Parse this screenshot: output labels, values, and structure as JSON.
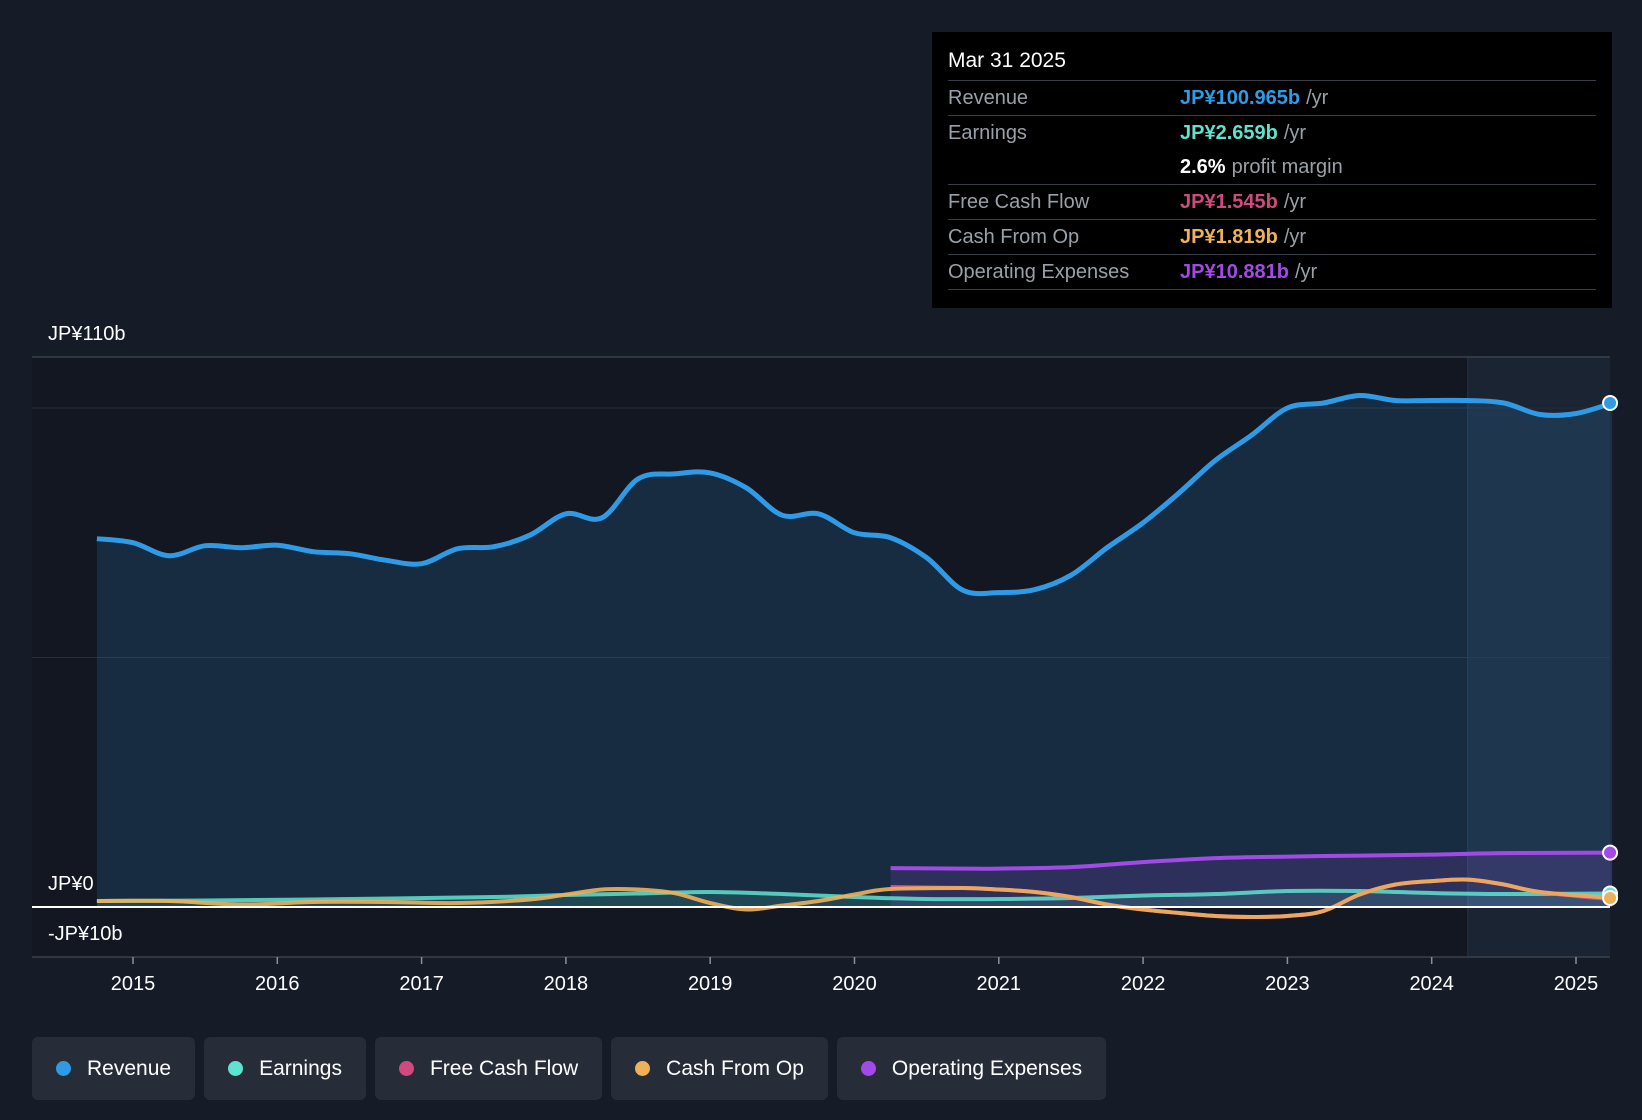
{
  "colors": {
    "revenue": "#2f9be6",
    "earnings": "#5fe3d0",
    "fcf": "#d04a80",
    "cfo": "#efb05a",
    "opex": "#a24ae8",
    "background": "#151c27",
    "plot_background": "#121721"
  },
  "tooltip": {
    "date": "Mar 31 2025",
    "rows": [
      {
        "label": "Revenue",
        "value": "JP¥100.965b",
        "unit": "/yr"
      },
      {
        "label": "Earnings",
        "value": "JP¥2.659b",
        "unit": "/yr"
      },
      {
        "label": "",
        "value": "2.6%",
        "unit": "profit margin"
      },
      {
        "label": "Free Cash Flow",
        "value": "JP¥1.545b",
        "unit": "/yr"
      },
      {
        "label": "Cash From Op",
        "value": "JP¥1.819b",
        "unit": "/yr"
      },
      {
        "label": "Operating Expenses",
        "value": "JP¥10.881b",
        "unit": "/yr"
      }
    ]
  },
  "legend": [
    {
      "label": "Revenue",
      "color": "#2f9be6"
    },
    {
      "label": "Earnings",
      "color": "#5fe3d0"
    },
    {
      "label": "Free Cash Flow",
      "color": "#d04a80"
    },
    {
      "label": "Cash From Op",
      "color": "#efb05a"
    },
    {
      "label": "Operating Expenses",
      "color": "#a24ae8"
    }
  ],
  "chart_data": {
    "type": "area",
    "title": "",
    "xlabel": "",
    "ylabel": "",
    "y_axis_labels": [
      "JP¥110b",
      "JP¥0",
      "-JP¥10b"
    ],
    "ylim": [
      -10,
      110
    ],
    "xlim": [
      2014.75,
      2025.25
    ],
    "x_ticks": [
      "2015",
      "2016",
      "2017",
      "2018",
      "2019",
      "2020",
      "2021",
      "2022",
      "2023",
      "2024",
      "2025"
    ],
    "series": [
      {
        "name": "Revenue",
        "x": [
          2014.75,
          2015.0,
          2015.25,
          2015.5,
          2015.75,
          2016.0,
          2016.25,
          2016.5,
          2016.75,
          2017.0,
          2017.25,
          2017.5,
          2017.75,
          2018.0,
          2018.25,
          2018.5,
          2018.75,
          2019.0,
          2019.25,
          2019.5,
          2019.75,
          2020.0,
          2020.25,
          2020.5,
          2020.75,
          2021.0,
          2021.25,
          2021.5,
          2021.75,
          2022.0,
          2022.25,
          2022.5,
          2022.75,
          2023.0,
          2023.25,
          2023.5,
          2023.75,
          2024.0,
          2024.25,
          2024.5,
          2024.75,
          2025.0,
          2025.25
        ],
        "values": [
          73.8,
          73.0,
          70.4,
          72.4,
          72.0,
          72.5,
          71.2,
          70.8,
          69.5,
          68.8,
          71.8,
          72.2,
          74.5,
          78.8,
          78.0,
          85.8,
          86.8,
          87.0,
          84.0,
          78.5,
          78.8,
          75.0,
          74.0,
          70.0,
          63.5,
          63.0,
          63.6,
          66.5,
          72.0,
          77.0,
          83.0,
          89.5,
          94.5,
          100.0,
          101.0,
          102.5,
          101.5,
          101.5,
          101.5,
          101.0,
          98.7,
          98.9,
          101.0
        ]
      },
      {
        "name": "Earnings",
        "x": [
          2014.75,
          2015.5,
          2016.5,
          2017.5,
          2018.0,
          2018.5,
          2019.0,
          2019.5,
          2020.0,
          2020.5,
          2021.0,
          2021.5,
          2022.0,
          2022.5,
          2023.0,
          2023.5,
          2024.0,
          2024.5,
          2025.25
        ],
        "values": [
          1.2,
          1.3,
          1.6,
          2.0,
          2.4,
          2.7,
          3.0,
          2.6,
          2.0,
          1.6,
          1.6,
          1.8,
          2.3,
          2.6,
          3.2,
          3.2,
          2.8,
          2.6,
          2.7
        ]
      },
      {
        "name": "Free Cash Flow",
        "x": [
          2020.25,
          2020.75,
          2021.0,
          2021.25,
          2021.5,
          2021.75,
          2022.0,
          2022.25,
          2022.5,
          2022.75,
          2023.0,
          2023.25,
          2023.5,
          2023.75,
          2024.0,
          2024.25,
          2024.5,
          2024.75,
          2025.25
        ],
        "values": [
          4.0,
          3.8,
          3.5,
          3.0,
          2.0,
          0.5,
          -0.5,
          -1.2,
          -1.8,
          -2.0,
          -1.8,
          -0.8,
          2.5,
          4.5,
          5.2,
          5.5,
          4.5,
          3.0,
          1.5
        ]
      },
      {
        "name": "Cash From Op",
        "x": [
          2014.75,
          2015.25,
          2015.75,
          2016.25,
          2016.75,
          2017.25,
          2017.75,
          2018.0,
          2018.25,
          2018.5,
          2018.75,
          2019.0,
          2019.25,
          2019.5,
          2019.75,
          2020.0,
          2020.25,
          2020.75,
          2021.0,
          2021.25,
          2021.5,
          2021.75,
          2022.0,
          2022.25,
          2022.5,
          2022.75,
          2023.0,
          2023.25,
          2023.5,
          2023.75,
          2024.0,
          2024.25,
          2024.5,
          2024.75,
          2025.25
        ],
        "values": [
          1.2,
          1.2,
          0.5,
          1.0,
          1.0,
          0.8,
          1.5,
          2.5,
          3.5,
          3.5,
          2.8,
          0.8,
          -0.5,
          0.3,
          1.2,
          2.5,
          3.6,
          3.8,
          3.5,
          3.0,
          2.0,
          0.5,
          -0.5,
          -1.2,
          -1.8,
          -2.0,
          -1.8,
          -0.8,
          2.5,
          4.5,
          5.2,
          5.5,
          4.5,
          3.0,
          1.8
        ]
      },
      {
        "name": "Operating Expenses",
        "x": [
          2020.25,
          2020.75,
          2021.0,
          2021.5,
          2022.0,
          2022.5,
          2023.0,
          2023.5,
          2024.0,
          2024.5,
          2025.25
        ],
        "values": [
          7.8,
          7.7,
          7.7,
          8.0,
          9.0,
          9.8,
          10.1,
          10.3,
          10.5,
          10.8,
          10.9
        ]
      }
    ]
  }
}
